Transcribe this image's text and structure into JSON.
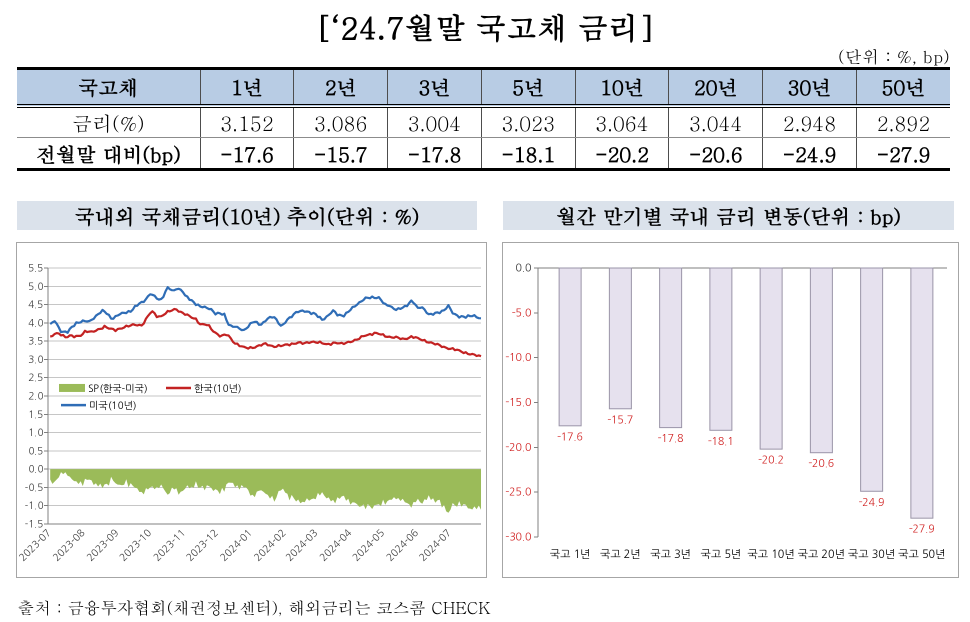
{
  "page": {
    "title": "[‘24.7월말 국고채 금리]",
    "unit_note": "(단위 : %, bp)",
    "source": "출처 : 금융투자협회(채권정보센터), 해외금리는 코스콤 CHECK"
  },
  "table": {
    "header": [
      "국고채",
      "1년",
      "2년",
      "3년",
      "5년",
      "10년",
      "20년",
      "30년",
      "50년"
    ],
    "rows": [
      {
        "label": "금리(%)",
        "values": [
          "3.152",
          "3.086",
          "3.004",
          "3.023",
          "3.064",
          "3.044",
          "2.948",
          "2.892"
        ],
        "bold": false
      },
      {
        "label": "전월말 대비(bp)",
        "values": [
          "-17.6",
          "-15.7",
          "-17.8",
          "-18.1",
          "-20.2",
          "-20.6",
          "-24.9",
          "-27.9"
        ],
        "bold": true
      }
    ],
    "header_bg": "#b8cce4"
  },
  "chart_data": [
    {
      "type": "line",
      "title": "국내외 국채금리(10년) 추이(단위 : %)",
      "ylim": [
        -1.5,
        5.5
      ],
      "ytick_step": 0.5,
      "ytick_labels": [
        "5.5",
        "5.0",
        "4.5",
        "4.0",
        "3.5",
        "3.0",
        "2.5",
        "2.0",
        "1.5",
        "1.0",
        "0.5",
        "0.0",
        "-0.5",
        "-1.0",
        "-1.5"
      ],
      "x_day_span": 396,
      "x_labels": [
        "2023-07",
        "2023-08",
        "2023-09",
        "2023-10",
        "2023-11",
        "2023-12",
        "2024-01",
        "2024-02",
        "2024-03",
        "2024-04",
        "2024-05",
        "2024-06",
        "2024-07"
      ],
      "x_label_days": [
        0,
        31,
        62,
        92,
        123,
        153,
        184,
        215,
        244,
        275,
        305,
        336,
        366
      ],
      "grid": true,
      "legend_position": "inside-left",
      "x_days": [
        2.0,
        4.0,
        6.0,
        8.0,
        10.0,
        11.9,
        13.9,
        15.9,
        17.9,
        19.9,
        21.9,
        23.9,
        25.9,
        27.9,
        29.9,
        31.8,
        33.8,
        35.8,
        37.8,
        39.8,
        41.8,
        43.8,
        45.8,
        47.8,
        49.8,
        51.7,
        53.7,
        55.7,
        57.7,
        59.7,
        61.7,
        63.7,
        65.7,
        67.7,
        69.7,
        71.6,
        73.6,
        75.6,
        77.6,
        79.6,
        81.6,
        83.6,
        85.6,
        87.6,
        89.6,
        91.5,
        93.5,
        95.5,
        97.5,
        99.5,
        101.5,
        103.5,
        105.5,
        107.5,
        109.5,
        111.4,
        113.4,
        115.4,
        117.4,
        119.4,
        121.4,
        123.4,
        125.4,
        127.4,
        129.4,
        131.3,
        133.3,
        135.3,
        137.3,
        139.3,
        141.3,
        143.3,
        145.3,
        147.3,
        149.3,
        151.2,
        153.2,
        155.2,
        157.2,
        159.2,
        161.2,
        163.2,
        165.2,
        167.2,
        169.2,
        171.1,
        173.1,
        175.1,
        177.1,
        179.1,
        181.1,
        183.1,
        185.1,
        187.1,
        189.1,
        191.0,
        193.0,
        195.0,
        197.0,
        199.0,
        201.0,
        203.0,
        205.0,
        207.0,
        208.9,
        210.9,
        212.9,
        214.9,
        216.9,
        218.9,
        220.9,
        222.9,
        224.9,
        226.9,
        228.8,
        230.8,
        232.8,
        234.8,
        236.8,
        238.8,
        240.8,
        242.8,
        244.8,
        246.8,
        248.7,
        250.7,
        252.7,
        254.7,
        256.7,
        258.7,
        260.7,
        262.7,
        264.7,
        266.7,
        268.6,
        270.6,
        272.6,
        274.6,
        276.6,
        278.6,
        280.6,
        282.6,
        284.6,
        286.6,
        288.5,
        290.5,
        292.5,
        294.5,
        296.5,
        298.5,
        300.5,
        302.5,
        304.5,
        306.5,
        308.4,
        310.4,
        312.4,
        314.4,
        316.4,
        318.4,
        320.4,
        322.4,
        324.4,
        326.4,
        328.3,
        330.3,
        332.3,
        334.3,
        336.3,
        338.3,
        340.3,
        342.3,
        344.3,
        346.3,
        348.2,
        350.2,
        352.2,
        354.2,
        356.2,
        358.2,
        360.2,
        362.2,
        364.2,
        366.2,
        368.1,
        370.1,
        372.1,
        374.1,
        376.1,
        378.1,
        380.1,
        382.1,
        384.1,
        386.1,
        388.0,
        390.0,
        392.0,
        394.0,
        396.0
      ],
      "series": [
        {
          "name": "SP(한국-미국)",
          "kind": "area",
          "color": "#9bbb59",
          "baseline": 0.0,
          "values": [
            -0.282,
            -0.403,
            -0.341,
            -0.283,
            -0.222,
            -0.081,
            -0.135,
            -0.087,
            -0.183,
            -0.203,
            -0.274,
            -0.326,
            -0.332,
            -0.406,
            -0.333,
            -0.464,
            -0.264,
            -0.295,
            -0.285,
            -0.304,
            -0.434,
            -0.388,
            -0.474,
            -0.395,
            -0.519,
            -0.417,
            -0.402,
            -0.449,
            -0.209,
            -0.321,
            -0.387,
            -0.423,
            -0.425,
            -0.44,
            -0.428,
            -0.276,
            -0.499,
            -0.381,
            -0.459,
            -0.51,
            -0.524,
            -0.624,
            -0.622,
            -0.69,
            -0.517,
            -0.558,
            -0.493,
            -0.472,
            -0.55,
            -0.485,
            -0.517,
            -0.42,
            -0.53,
            -0.62,
            -0.7,
            -0.655,
            -0.499,
            -0.557,
            -0.522,
            -0.698,
            -0.616,
            -0.594,
            -0.536,
            -0.443,
            -0.52,
            -0.483,
            -0.508,
            -0.33,
            -0.505,
            -0.506,
            -0.452,
            -0.58,
            -0.441,
            -0.468,
            -0.508,
            -0.598,
            -0.546,
            -0.585,
            -0.683,
            -0.51,
            -0.619,
            -0.412,
            -0.368,
            -0.372,
            -0.376,
            -0.5,
            -0.44,
            -0.56,
            -0.433,
            -0.5,
            -0.496,
            -0.569,
            -0.724,
            -0.7,
            -0.765,
            -0.613,
            -0.59,
            -0.577,
            -0.618,
            -0.674,
            -0.704,
            -0.806,
            -0.726,
            -0.891,
            -0.777,
            -0.598,
            -0.584,
            -0.532,
            -0.642,
            -0.675,
            -0.854,
            -0.704,
            -0.8,
            -0.884,
            -0.83,
            -0.931,
            -0.892,
            -0.905,
            -0.796,
            -0.865,
            -0.824,
            -0.803,
            -0.823,
            -0.65,
            -0.722,
            -0.628,
            -0.724,
            -0.8,
            -0.772,
            -0.882,
            -0.842,
            -0.936,
            -0.766,
            -0.813,
            -0.745,
            -0.73,
            -0.866,
            -0.811,
            -0.97,
            -0.907,
            -0.914,
            -0.957,
            -1.026,
            -1.015,
            -0.964,
            -1.097,
            -0.954,
            -1.017,
            -1.09,
            -0.983,
            -0.976,
            -0.959,
            -1.008,
            -0.832,
            -0.971,
            -0.873,
            -0.837,
            -0.836,
            -0.764,
            -0.825,
            -0.79,
            -0.872,
            -0.812,
            -0.907,
            -0.926,
            -0.961,
            -1.058,
            -0.898,
            -0.906,
            -0.811,
            -0.908,
            -0.945,
            -0.822,
            -0.845,
            -0.716,
            -0.844,
            -0.797,
            -0.92,
            -0.853,
            -0.836,
            -1.051,
            -0.976,
            -1.155,
            -1.193,
            -1.108,
            -0.925,
            -0.989,
            -1.03,
            -0.874,
            -1.024,
            -0.956,
            -0.971,
            -1.073,
            -1.08,
            -1.103,
            -1.018,
            -1.094,
            -0.994,
            -1.111
          ]
        },
        {
          "name": "한국(10년)",
          "kind": "line",
          "color": "#c32222",
          "values": [
            3.627,
            3.639,
            3.695,
            3.721,
            3.706,
            3.657,
            3.668,
            3.604,
            3.608,
            3.658,
            3.656,
            3.604,
            3.647,
            3.644,
            3.643,
            3.695,
            3.783,
            3.746,
            3.762,
            3.77,
            3.759,
            3.783,
            3.83,
            3.835,
            3.844,
            3.919,
            3.873,
            3.844,
            3.843,
            3.832,
            3.775,
            3.831,
            3.842,
            3.846,
            3.872,
            3.925,
            3.901,
            3.929,
            3.962,
            3.945,
            3.928,
            3.947,
            3.928,
            3.979,
            4.116,
            4.189,
            4.261,
            4.316,
            4.263,
            4.158,
            4.179,
            4.183,
            4.211,
            4.25,
            4.328,
            4.312,
            4.337,
            4.379,
            4.369,
            4.308,
            4.304,
            4.271,
            4.219,
            4.23,
            4.19,
            4.14,
            4.119,
            4.12,
            4.004,
            3.96,
            3.97,
            3.955,
            3.935,
            3.935,
            3.83,
            3.763,
            3.734,
            3.687,
            3.624,
            3.659,
            3.679,
            3.662,
            3.653,
            3.578,
            3.478,
            3.43,
            3.433,
            3.362,
            3.359,
            3.347,
            3.324,
            3.297,
            3.34,
            3.313,
            3.321,
            3.363,
            3.39,
            3.377,
            3.427,
            3.444,
            3.386,
            3.383,
            3.373,
            3.34,
            3.345,
            3.394,
            3.362,
            3.382,
            3.409,
            3.411,
            3.383,
            3.439,
            3.428,
            3.434,
            3.462,
            3.473,
            3.425,
            3.45,
            3.471,
            3.448,
            3.473,
            3.489,
            3.463,
            3.453,
            3.49,
            3.442,
            3.424,
            3.42,
            3.426,
            3.397,
            3.46,
            3.457,
            3.438,
            3.442,
            3.455,
            3.421,
            3.455,
            3.484,
            3.471,
            3.49,
            3.54,
            3.541,
            3.559,
            3.634,
            3.636,
            3.648,
            3.672,
            3.695,
            3.667,
            3.731,
            3.723,
            3.694,
            3.679,
            3.69,
            3.623,
            3.617,
            3.624,
            3.6,
            3.591,
            3.624,
            3.597,
            3.557,
            3.576,
            3.56,
            3.558,
            3.594,
            3.638,
            3.59,
            3.61,
            3.59,
            3.551,
            3.52,
            3.535,
            3.471,
            3.459,
            3.468,
            3.442,
            3.409,
            3.426,
            3.392,
            3.337,
            3.347,
            3.321,
            3.285,
            3.288,
            3.309,
            3.253,
            3.266,
            3.252,
            3.212,
            3.172,
            3.197,
            3.145,
            3.135,
            3.15,
            3.136,
            3.093,
            3.111,
            3.087
          ]
        },
        {
          "name": "미국(10년)",
          "kind": "line",
          "color": "#2f6db6",
          "values": [
            3.968,
            4.012,
            4.046,
            3.976,
            3.869,
            3.746,
            3.758,
            3.765,
            3.729,
            3.838,
            3.892,
            3.91,
            4.015,
            4.001,
            4.012,
            4.066,
            4.045,
            4.038,
            4.052,
            4.082,
            4.107,
            4.196,
            4.24,
            4.269,
            4.355,
            4.31,
            4.246,
            4.221,
            4.116,
            4.111,
            4.186,
            4.2,
            4.232,
            4.279,
            4.271,
            4.268,
            4.323,
            4.302,
            4.366,
            4.464,
            4.467,
            4.532,
            4.574,
            4.571,
            4.651,
            4.729,
            4.78,
            4.768,
            4.742,
            4.662,
            4.635,
            4.656,
            4.709,
            4.861,
            4.976,
            4.92,
            4.892,
            4.891,
            4.917,
            4.932,
            4.909,
            4.841,
            4.75,
            4.721,
            4.629,
            4.622,
            4.564,
            4.485,
            4.501,
            4.444,
            4.425,
            4.445,
            4.405,
            4.376,
            4.379,
            4.31,
            4.232,
            4.277,
            4.26,
            4.223,
            4.251,
            4.078,
            3.947,
            3.934,
            3.892,
            3.893,
            3.892,
            3.839,
            3.801,
            3.807,
            3.84,
            3.886,
            3.991,
            4.009,
            4.025,
            4.029,
            3.947,
            3.951,
            4.021,
            4.047,
            4.119,
            4.162,
            4.145,
            4.155,
            4.098,
            3.979,
            3.921,
            3.958,
            4.0,
            4.094,
            4.149,
            4.158,
            4.245,
            4.297,
            4.294,
            4.325,
            4.337,
            4.303,
            4.31,
            4.302,
            4.24,
            4.276,
            4.239,
            4.161,
            4.162,
            4.083,
            4.097,
            4.175,
            4.216,
            4.262,
            4.343,
            4.3,
            4.202,
            4.223,
            4.202,
            4.173,
            4.276,
            4.299,
            4.348,
            4.436,
            4.446,
            4.495,
            4.562,
            4.586,
            4.621,
            4.692,
            4.684,
            4.672,
            4.721,
            4.68,
            4.676,
            4.705,
            4.628,
            4.544,
            4.521,
            4.474,
            4.462,
            4.437,
            4.38,
            4.352,
            4.4,
            4.383,
            4.414,
            4.463,
            4.455,
            4.543,
            4.611,
            4.542,
            4.49,
            4.413,
            4.408,
            4.426,
            4.368,
            4.271,
            4.236,
            4.249,
            4.221,
            4.277,
            4.285,
            4.263,
            4.332,
            4.343,
            4.39,
            4.486,
            4.379,
            4.258,
            4.241,
            4.207,
            4.143,
            4.185,
            4.172,
            4.137,
            4.208,
            4.183,
            4.186,
            4.211,
            4.152,
            4.127,
            4.124
          ]
        }
      ]
    },
    {
      "type": "bar",
      "title": "월간 만기별 국내 금리 변동(단위 : bp)",
      "categories": [
        "국고 1년",
        "국고 2년",
        "국고 3년",
        "국고 5년",
        "국고 10년",
        "국고 20년",
        "국고 30년",
        "국고 50년"
      ],
      "values": [
        -17.6,
        -15.7,
        -17.8,
        -18.1,
        -20.2,
        -20.6,
        -24.9,
        -27.9
      ],
      "value_labels": [
        "-17.6",
        "-15.7",
        "-17.8",
        "-18.1",
        "-20.2",
        "-20.6",
        "-24.9",
        "-27.9"
      ],
      "ylim": [
        -30,
        0
      ],
      "ytick_step": 5,
      "ytick_labels": [
        "0.0",
        "-5.0",
        "-10.0",
        "-15.0",
        "-20.0",
        "-25.0",
        "-30.0"
      ],
      "grid": false,
      "bar_fill": "#e6e1ee",
      "bar_border": "#9a94a8",
      "label_color": "#d02020",
      "negative_tick_color": "#d02020",
      "zero_tick_color": "#333333"
    }
  ],
  "colors": {
    "table_header_bg": "#b8cce4",
    "chart_title_bg": "#dbe2eb",
    "spread_green": "#9bbb59",
    "korea_red": "#c32222",
    "us_blue": "#2f6db6",
    "bar_lavender": "#e6e1ee"
  }
}
